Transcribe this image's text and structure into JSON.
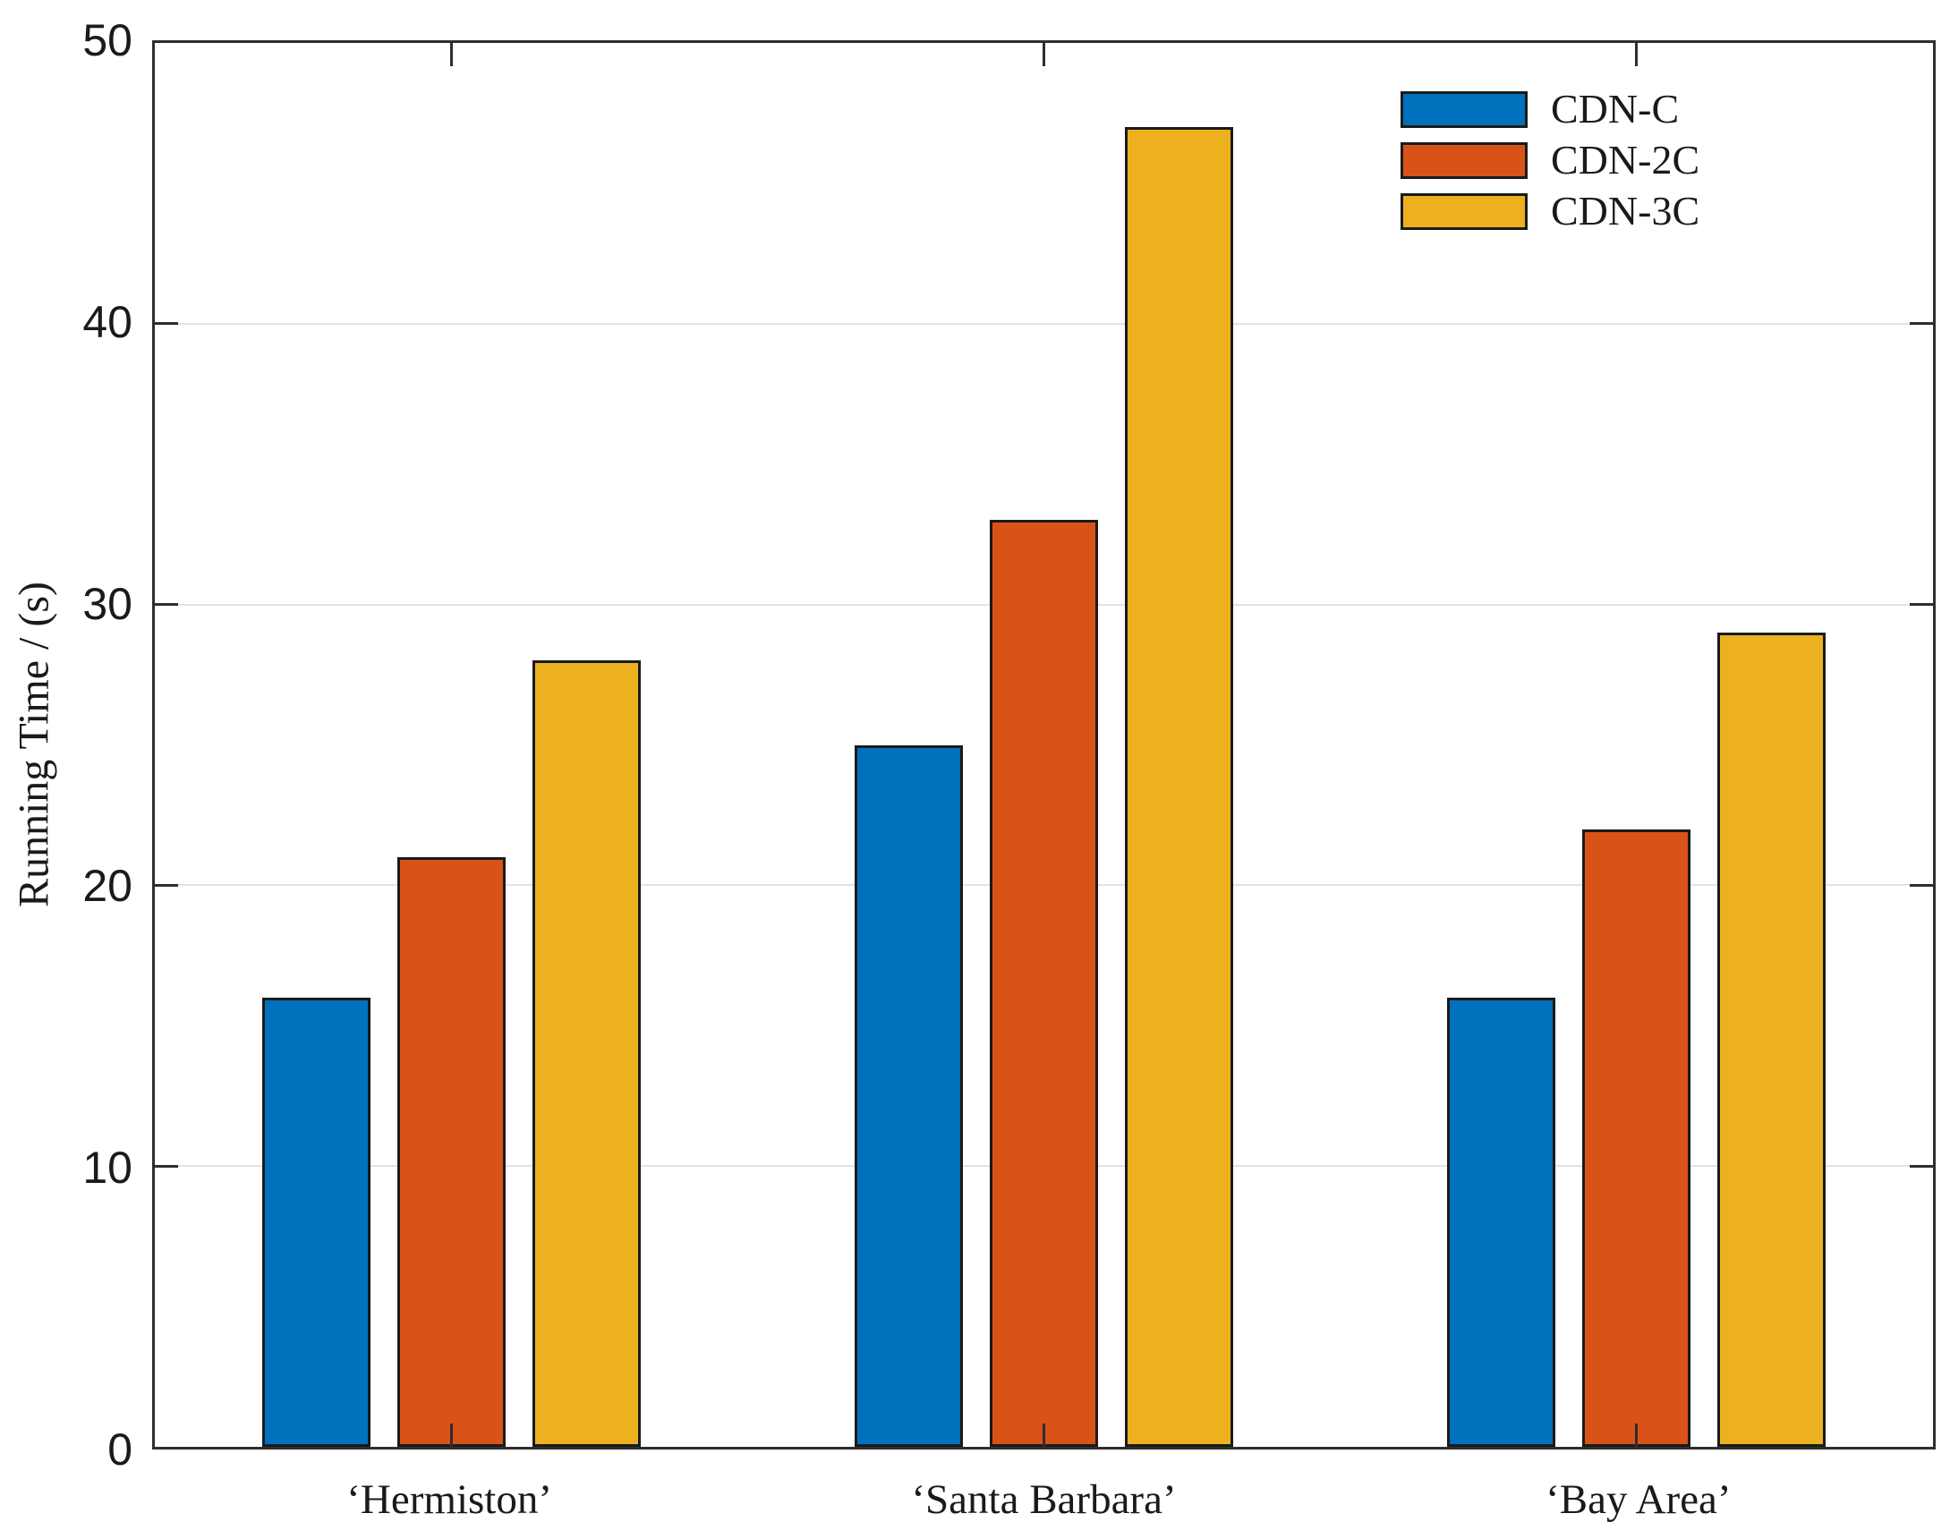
{
  "figure": {
    "ylabel": "Running Time / (s)"
  },
  "chart_data": {
    "type": "bar",
    "title": "",
    "xlabel": "",
    "ylabel": "Running Time / (s)",
    "categories": [
      "‘Hermiston’",
      "‘Santa Barbara’",
      "‘Bay Area’"
    ],
    "series": [
      {
        "name": "CDN-C",
        "color": "#0072BD",
        "values": [
          16,
          25,
          16
        ]
      },
      {
        "name": "CDN-2C",
        "color": "#D95319",
        "values": [
          21,
          33,
          22
        ]
      },
      {
        "name": "CDN-3C",
        "color": "#EDB120",
        "values": [
          28,
          47,
          29
        ]
      }
    ],
    "ylim": [
      0,
      50
    ],
    "yticks": [
      0,
      10,
      20,
      30,
      40,
      50
    ],
    "grid": "horizontal",
    "grid_color": "#e3e3e3",
    "axis_color": "#2e2e2e",
    "bar_edge_color": "#1a1a1a",
    "legend_position": "top-right",
    "legend_frame": false
  }
}
